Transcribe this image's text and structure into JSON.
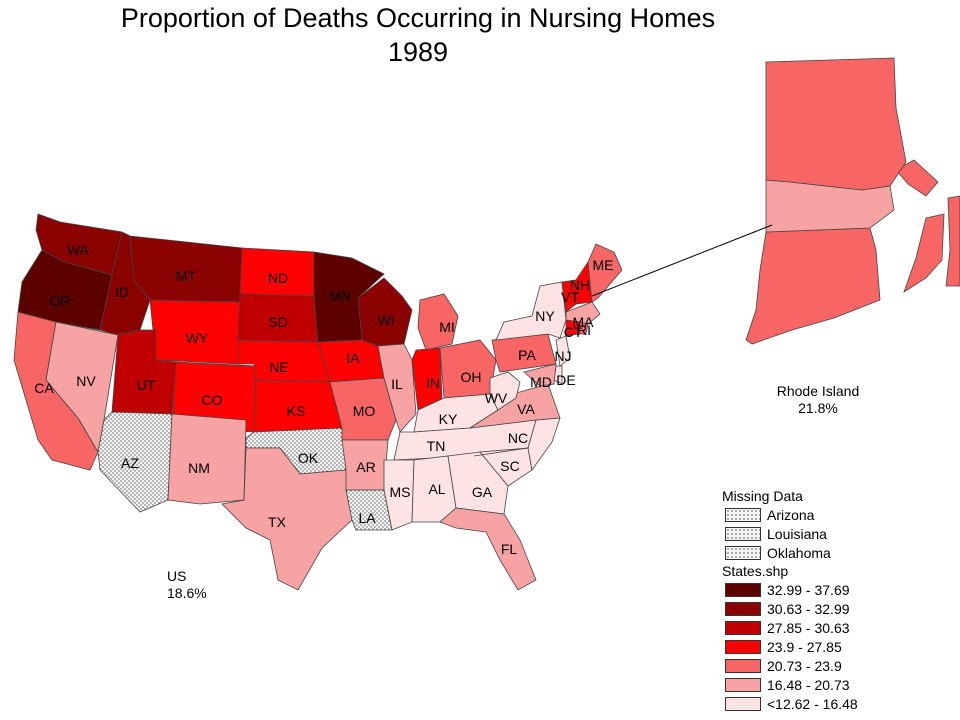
{
  "title": {
    "line1": "Proportion of Deaths Occurring in Nursing Homes",
    "line2": "1989"
  },
  "us_summary": {
    "label": "US",
    "value": "18.6%"
  },
  "inset": {
    "label": "Rhode Island",
    "value": "21.8%",
    "class": 4
  },
  "legend": {
    "missing_title": "Missing Data",
    "missing": [
      "Arizona",
      "Louisiana",
      "Oklahoma"
    ],
    "classes_title": "States.shp",
    "classes": [
      {
        "label": "32.99 - 37.69",
        "color": "#5c0000"
      },
      {
        "label": "30.63 - 32.99",
        "color": "#8b0000"
      },
      {
        "label": "27.85 - 30.63",
        "color": "#c00000"
      },
      {
        "label": "23.9 - 27.85",
        "color": "#ff0000"
      },
      {
        "label": "20.73 - 23.9",
        "color": "#f86565"
      },
      {
        "label": "16.48 - 20.73",
        "color": "#f7a3a3"
      },
      {
        "label": "<12.62 - 16.48",
        "color": "#fde3e3"
      }
    ],
    "missing_fill": "#f4f4f4"
  },
  "states": [
    {
      "abbr": "WA",
      "class": 1
    },
    {
      "abbr": "OR",
      "class": 0
    },
    {
      "abbr": "CA",
      "class": 4
    },
    {
      "abbr": "NV",
      "class": 5
    },
    {
      "abbr": "ID",
      "class": 1
    },
    {
      "abbr": "MT",
      "class": 1
    },
    {
      "abbr": "WY",
      "class": 3
    },
    {
      "abbr": "UT",
      "class": 2
    },
    {
      "abbr": "CO",
      "class": 3
    },
    {
      "abbr": "AZ",
      "class": "missing"
    },
    {
      "abbr": "NM",
      "class": 5
    },
    {
      "abbr": "ND",
      "class": 3
    },
    {
      "abbr": "SD",
      "class": 2
    },
    {
      "abbr": "NE",
      "class": 3
    },
    {
      "abbr": "KS",
      "class": 3
    },
    {
      "abbr": "OK",
      "class": "missing"
    },
    {
      "abbr": "TX",
      "class": 5
    },
    {
      "abbr": "MN",
      "class": 0
    },
    {
      "abbr": "IA",
      "class": 3
    },
    {
      "abbr": "MO",
      "class": 4
    },
    {
      "abbr": "AR",
      "class": 5
    },
    {
      "abbr": "LA",
      "class": "missing"
    },
    {
      "abbr": "WI",
      "class": 1
    },
    {
      "abbr": "IL",
      "class": 5
    },
    {
      "abbr": "MI",
      "class": 4
    },
    {
      "abbr": "IN",
      "class": 3
    },
    {
      "abbr": "OH",
      "class": 4
    },
    {
      "abbr": "KY",
      "class": 6
    },
    {
      "abbr": "TN",
      "class": 6
    },
    {
      "abbr": "MS",
      "class": 6
    },
    {
      "abbr": "AL",
      "class": 6
    },
    {
      "abbr": "GA",
      "class": 6
    },
    {
      "abbr": "FL",
      "class": 5
    },
    {
      "abbr": "SC",
      "class": 6
    },
    {
      "abbr": "NC",
      "class": 6
    },
    {
      "abbr": "VA",
      "class": 5
    },
    {
      "abbr": "WV",
      "class": 6
    },
    {
      "abbr": "PA",
      "class": 4
    },
    {
      "abbr": "NY",
      "class": 6
    },
    {
      "abbr": "VT",
      "class": 3
    },
    {
      "abbr": "NH",
      "class": 3
    },
    {
      "abbr": "ME",
      "class": 4
    },
    {
      "abbr": "MA",
      "class": 5
    },
    {
      "abbr": "CT",
      "class": 3
    },
    {
      "abbr": "RI",
      "class": 4
    },
    {
      "abbr": "NJ",
      "class": 6
    },
    {
      "abbr": "DE",
      "class": 6
    },
    {
      "abbr": "MD",
      "class": 5
    }
  ]
}
